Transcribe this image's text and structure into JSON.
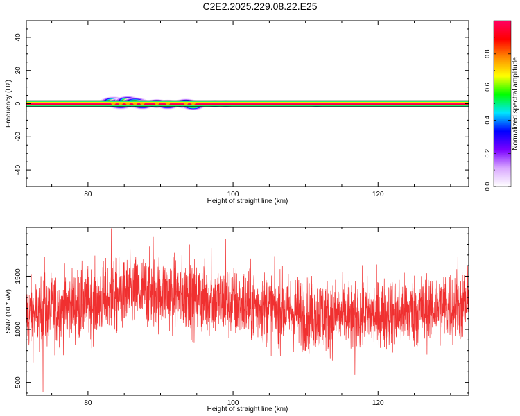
{
  "chart_data": [
    {
      "type": "heatmap",
      "title": "C2E2.2025.229.08.22.E25",
      "xlabel": "Height of straight line (km)",
      "ylabel": "Frequency (Hz)",
      "xlim": [
        71.5,
        132.5
      ],
      "ylim": [
        -50,
        50
      ],
      "x_ticks": [
        80,
        100,
        120
      ],
      "y_ticks": [
        40,
        20,
        0,
        -20,
        -40
      ],
      "baseline_frequency": 0,
      "blobs": [
        {
          "x": 83.5,
          "y": 1.0,
          "amplitude": 0.55
        },
        {
          "x": 84.5,
          "y": 0.0,
          "amplitude": 0.6
        },
        {
          "x": 85.5,
          "y": 1.5,
          "amplitude": 0.5
        },
        {
          "x": 86.5,
          "y": 0.5,
          "amplitude": 0.55
        },
        {
          "x": 87.5,
          "y": -0.5,
          "amplitude": 0.4
        },
        {
          "x": 89.5,
          "y": 0.0,
          "amplitude": 0.35
        },
        {
          "x": 91.0,
          "y": -0.5,
          "amplitude": 0.4
        },
        {
          "x": 93.5,
          "y": 0.0,
          "amplitude": 0.45
        },
        {
          "x": 94.5,
          "y": -1.0,
          "amplitude": 0.4
        },
        {
          "x": 97.5,
          "y": 0.0,
          "amplitude": 0.1
        },
        {
          "x": 99.0,
          "y": 0.0,
          "amplitude": 0.1
        },
        {
          "x": 111.5,
          "y": 0.0,
          "amplitude": 0.05
        }
      ],
      "colorbar": {
        "label": "Normalized spectral amplitude",
        "range": [
          0,
          1
        ],
        "ticks": [
          "0.0",
          "0.2",
          "0.4",
          "0.6",
          "0.8"
        ],
        "tick_values": [
          0,
          0.2,
          0.4,
          0.6,
          0.8
        ],
        "colors": [
          "#ffffff",
          "#d9a8ff",
          "#7a00ff",
          "#0000ff",
          "#00e5ff",
          "#00ff00",
          "#ffff00",
          "#ff8c00",
          "#ff0000",
          "#ff0060"
        ]
      }
    },
    {
      "type": "line",
      "xlabel": "Height of straight line (km)",
      "ylabel": "SNR (10 * v/v)",
      "xlim": [
        71.5,
        132.5
      ],
      "ylim": [
        380,
        1960
      ],
      "x_ticks": [
        80,
        100,
        120
      ],
      "y_ticks": [
        500,
        1000,
        1500
      ],
      "trend": [
        {
          "x": 71.5,
          "y": 1120
        },
        {
          "x": 75,
          "y": 1180
        },
        {
          "x": 80,
          "y": 1240
        },
        {
          "x": 85,
          "y": 1330
        },
        {
          "x": 88,
          "y": 1360
        },
        {
          "x": 92,
          "y": 1330
        },
        {
          "x": 95,
          "y": 1300
        },
        {
          "x": 100,
          "y": 1250
        },
        {
          "x": 105,
          "y": 1200
        },
        {
          "x": 110,
          "y": 1150
        },
        {
          "x": 115,
          "y": 1120
        },
        {
          "x": 120,
          "y": 1130
        },
        {
          "x": 125,
          "y": 1170
        },
        {
          "x": 130,
          "y": 1220
        },
        {
          "x": 132.5,
          "y": 1230
        }
      ],
      "noise_amplitude": 170,
      "spikes": [
        {
          "x": 74.0,
          "y": 1680
        },
        {
          "x": 73.8,
          "y": 410
        },
        {
          "x": 83.2,
          "y": 1950
        },
        {
          "x": 89.0,
          "y": 1870
        },
        {
          "x": 94.0,
          "y": 1800
        },
        {
          "x": 97.0,
          "y": 1770
        },
        {
          "x": 99.0,
          "y": 1850
        },
        {
          "x": 116.8,
          "y": 570
        },
        {
          "x": 131.0,
          "y": 1680
        }
      ],
      "series": [
        {
          "color": "#f03030"
        }
      ]
    }
  ]
}
